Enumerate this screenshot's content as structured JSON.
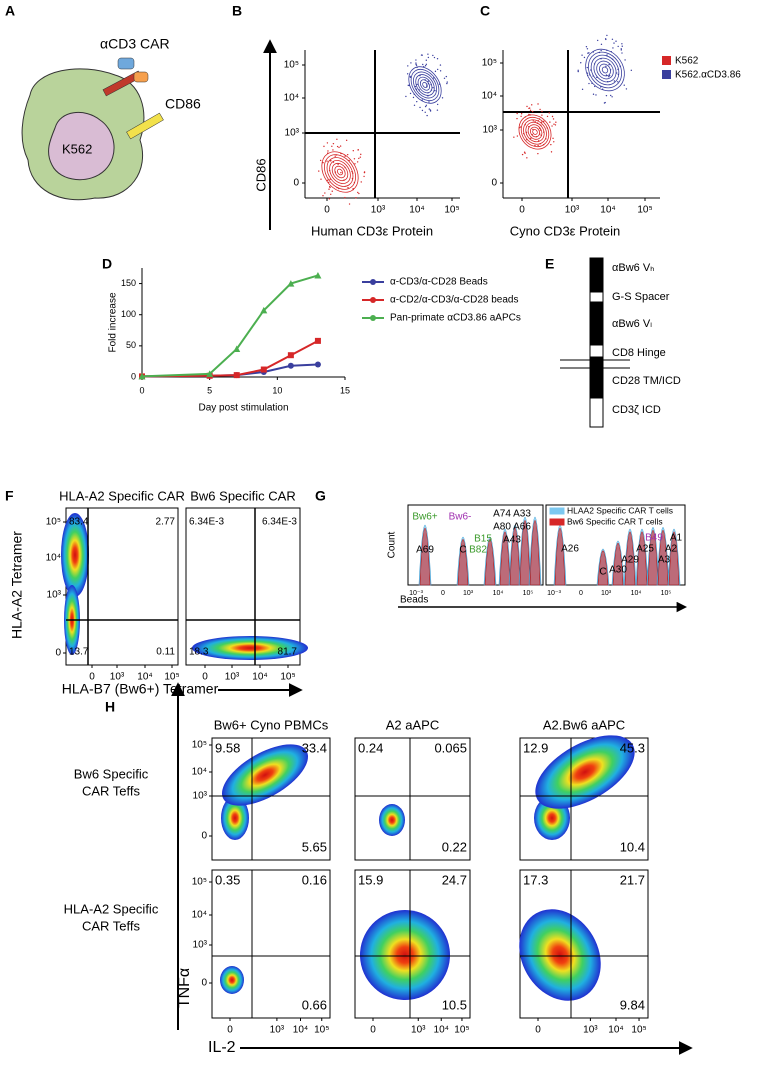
{
  "panel_letters": [
    "A",
    "B",
    "C",
    "D",
    "E",
    "F",
    "G",
    "H"
  ],
  "panel_a": {
    "car_label": "αCD3 CAR",
    "cd86_label": "CD86",
    "cell_label": "K562"
  },
  "panel_b": {
    "y_label": "CD86",
    "x_label": "Human CD3ε Protein",
    "y_ticks": [
      "10⁵",
      "10⁴",
      "10³",
      0
    ],
    "x_ticks": [
      0,
      "10³",
      "10⁴",
      "10⁵"
    ]
  },
  "panel_c": {
    "x_label": "Cyno CD3ε Protein",
    "y_ticks": [
      "10⁵",
      "10⁴",
      "10³",
      0
    ],
    "x_ticks": [
      0,
      "10³",
      "10⁴",
      "10⁵"
    ],
    "legend": [
      {
        "name": "K562",
        "color": "#d62728"
      },
      {
        "name": "K562.αCD3.86",
        "color": "#3a3f9e"
      }
    ]
  },
  "chart_data": {
    "type": "line",
    "x_label": "Day post stimulation",
    "y_label": "Fold increase",
    "x": [
      0,
      5,
      7,
      9,
      11,
      13
    ],
    "xlim": [
      0,
      15
    ],
    "xticks": [
      0,
      5,
      10,
      15
    ],
    "ylim": [
      0,
      175
    ],
    "yticks": [
      0,
      50,
      100,
      150
    ],
    "series": [
      {
        "name": "α-CD3/α-CD28 Beads",
        "color": "#3a3f9e",
        "marker": "circle",
        "values": [
          1,
          2,
          3,
          8,
          18,
          20
        ]
      },
      {
        "name": "α-CD2/α-CD3/α-CD28 beads",
        "color": "#d62728",
        "marker": "square",
        "values": [
          1,
          2,
          3,
          12,
          35,
          58
        ]
      },
      {
        "name": "Pan-primate αCD3.86 aAPCs",
        "color": "#4caf50",
        "marker": "triangle",
        "values": [
          1,
          5,
          45,
          107,
          150,
          163
        ]
      }
    ]
  },
  "panel_e": {
    "segments": [
      "αBw6 Vₕ",
      "G-S Spacer",
      "αBw6 Vₗ",
      "CD8 Hinge",
      "CD28 TM/ICD",
      "CD3ζ ICD"
    ]
  },
  "panel_f": {
    "y_label": "HLA-A2 Tetramer",
    "x_label": "HLA-B7 (Bw6+) Tetramer",
    "y_ticks": [
      "10⁵",
      "10⁴",
      "10³",
      0
    ],
    "x_ticks": [
      0,
      "10³",
      "10⁴",
      "10⁵"
    ],
    "plots": [
      {
        "title": "HLA-A2 Specific CAR",
        "quadrants": [
          83.4,
          2.77,
          13.7,
          0.11
        ]
      },
      {
        "title": "Bw6 Specific CAR",
        "quadrants": [
          "6.34E-3",
          "6.34E-3",
          18.3,
          81.7
        ]
      }
    ]
  },
  "panel_g": {
    "y_label": "Count",
    "x_label": "Beads",
    "x_ticks": [
      "10⁻³",
      0,
      "10³",
      "10⁴",
      "10⁵"
    ],
    "legend": [
      {
        "name": "HLAA2 Specific CAR T cells",
        "color": "#7cc8f0"
      },
      {
        "name": "Bw6 Specific CAR T cells",
        "color": "#d62728"
      }
    ],
    "left_labels": [
      {
        "text": "Bw6+",
        "color": "#3a9a2a"
      },
      {
        "text": "Bw6-",
        "color": "#a030b0"
      },
      {
        "text": "A74 A33",
        "color": "#000"
      },
      {
        "text": "A80 A66",
        "color": "#000"
      },
      {
        "text": "B15",
        "color": "#3a9a2a"
      },
      {
        "text": "A43",
        "color": "#000"
      },
      {
        "text": "B82",
        "color": "#3a9a2a"
      },
      {
        "text": "A69",
        "color": "#000"
      },
      {
        "text": "C",
        "color": "#000"
      }
    ],
    "right_labels": [
      {
        "text": "B49",
        "color": "#a030b0"
      },
      {
        "text": "A1",
        "color": "#000"
      },
      {
        "text": "A25",
        "color": "#000"
      },
      {
        "text": "A2",
        "color": "#000"
      },
      {
        "text": "A29",
        "color": "#000"
      },
      {
        "text": "A3",
        "color": "#000"
      },
      {
        "text": "A26",
        "color": "#000"
      },
      {
        "text": "A30",
        "color": "#000"
      },
      {
        "text": "C",
        "color": "#000"
      }
    ]
  },
  "panel_h": {
    "y_label": "TNFα",
    "x_label": "IL-2",
    "columns": [
      "Bw6+ Cyno PBMCs",
      "A2 aAPC",
      "A2.Bw6 aAPC"
    ],
    "rows": [
      [
        "Bw6 Specific",
        "CAR Teffs"
      ],
      [
        "HLA-A2 Specific",
        "CAR Teffs"
      ]
    ],
    "y_ticks": [
      "10⁵",
      "10⁴",
      "10³",
      0
    ],
    "x_ticks": [
      0,
      "10³",
      "10⁴",
      "10⁵"
    ],
    "plots": [
      [
        [
          9.58,
          33.4,
          5.65
        ],
        [
          0.24,
          0.065,
          0.22
        ],
        [
          12.9,
          45.3,
          10.4
        ]
      ],
      [
        [
          0.35,
          0.16,
          0.66
        ],
        [
          15.9,
          24.7,
          10.5
        ],
        [
          17.3,
          21.7,
          9.84
        ]
      ]
    ]
  }
}
